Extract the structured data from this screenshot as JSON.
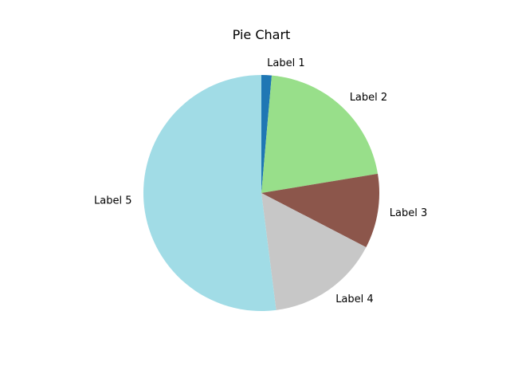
{
  "chart_data": {
    "type": "pie",
    "title": "Pie Chart",
    "start_angle_deg": 90,
    "direction": "clockwise",
    "slices": [
      {
        "label": "Label 1",
        "value": 1.4,
        "color": "#1f77b4"
      },
      {
        "label": "Label 2",
        "value": 21.0,
        "color": "#98df8a"
      },
      {
        "label": "Label 3",
        "value": 10.2,
        "color": "#8c564b"
      },
      {
        "label": "Label 4",
        "value": 15.4,
        "color": "#c7c7c7"
      },
      {
        "label": "Label 5",
        "value": 52.0,
        "color": "#a1dce6"
      }
    ]
  }
}
